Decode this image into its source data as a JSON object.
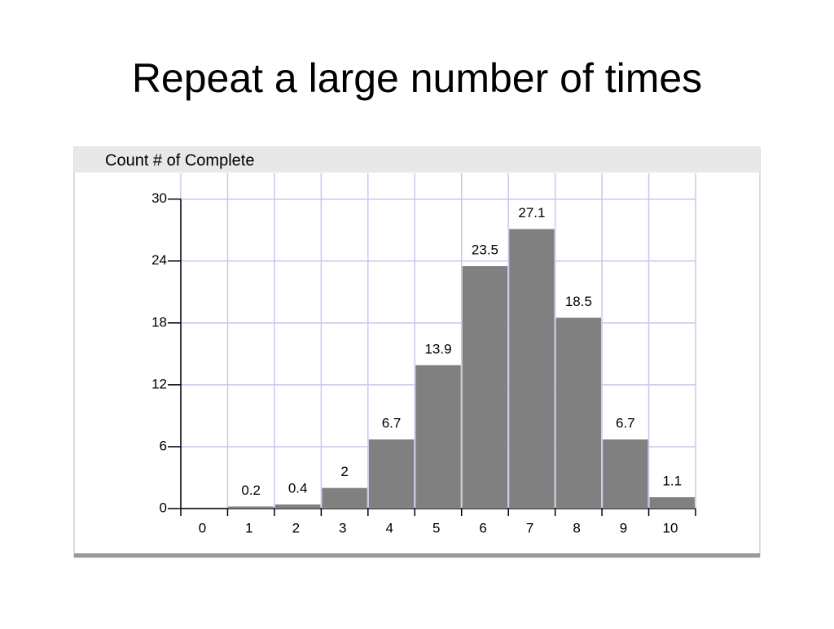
{
  "title": "Repeat a large number of times",
  "chart_data": {
    "type": "bar",
    "title": "Count # of Complete",
    "categories": [
      "0",
      "1",
      "2",
      "3",
      "4",
      "5",
      "6",
      "7",
      "8",
      "9",
      "10"
    ],
    "values": [
      0,
      0.2,
      0.4,
      2,
      6.7,
      13.9,
      23.5,
      27.1,
      18.5,
      6.7,
      1.1
    ],
    "color": "#808080",
    "ylim": [
      0,
      32.5
    ],
    "yticks": [
      0,
      6,
      12,
      18,
      24,
      30
    ],
    "grid": true
  }
}
